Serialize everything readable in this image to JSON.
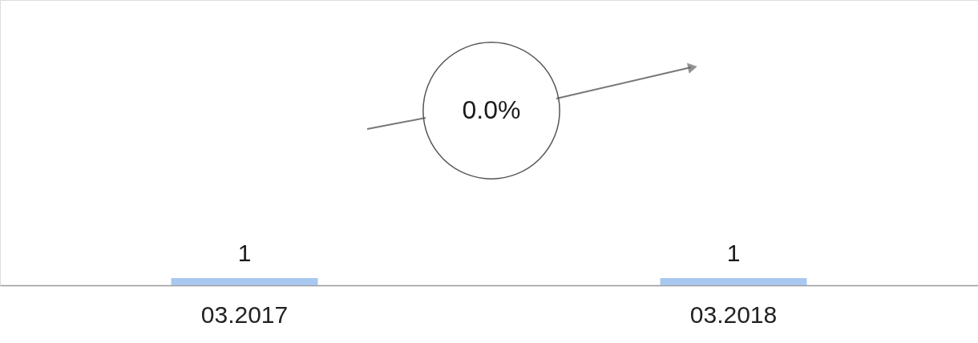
{
  "chart_data": {
    "type": "bar",
    "categories": [
      "03.2017",
      "03.2018"
    ],
    "values": [
      1,
      1
    ],
    "color": "#a9c8f0",
    "data_labels": true,
    "annotations": [
      "0.0%"
    ],
    "grid": false
  }
}
